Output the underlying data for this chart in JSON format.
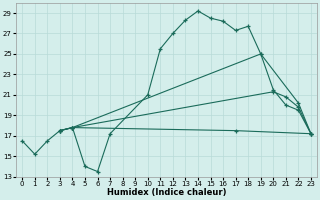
{
  "xlabel": "Humidex (Indice chaleur)",
  "background_color": "#d4eeeb",
  "grid_color": "#b8dbd8",
  "line_color": "#1a6b5a",
  "xlim": [
    -0.5,
    23.5
  ],
  "ylim": [
    13,
    30
  ],
  "yticks": [
    13,
    15,
    17,
    19,
    21,
    23,
    25,
    27,
    29
  ],
  "xticks": [
    0,
    1,
    2,
    3,
    4,
    5,
    6,
    7,
    8,
    9,
    10,
    11,
    12,
    13,
    14,
    15,
    16,
    17,
    18,
    19,
    20,
    21,
    22,
    23
  ],
  "line1_x": [
    0,
    1,
    2,
    3,
    4,
    17,
    23
  ],
  "line1_y": [
    16.5,
    15.2,
    16.5,
    17.5,
    17.8,
    17.5,
    17.2
  ],
  "line2_x": [
    3,
    4,
    5,
    6,
    7,
    10,
    11,
    12,
    13,
    14,
    15,
    16,
    17,
    18,
    19,
    20,
    21,
    22,
    23
  ],
  "line2_y": [
    17.5,
    17.8,
    14.0,
    13.5,
    17.2,
    21.0,
    25.5,
    27.0,
    28.3,
    29.2,
    28.5,
    28.2,
    27.3,
    27.7,
    25.0,
    21.5,
    20.0,
    19.5,
    17.2
  ],
  "line3_x": [
    3,
    4,
    19,
    22,
    23
  ],
  "line3_y": [
    17.5,
    17.8,
    25.0,
    20.2,
    17.2
  ],
  "line4_x": [
    3,
    4,
    20,
    21,
    22,
    23
  ],
  "line4_y": [
    17.5,
    17.8,
    21.3,
    20.8,
    19.8,
    17.2
  ],
  "figsize": [
    3.2,
    2.0
  ],
  "dpi": 100
}
